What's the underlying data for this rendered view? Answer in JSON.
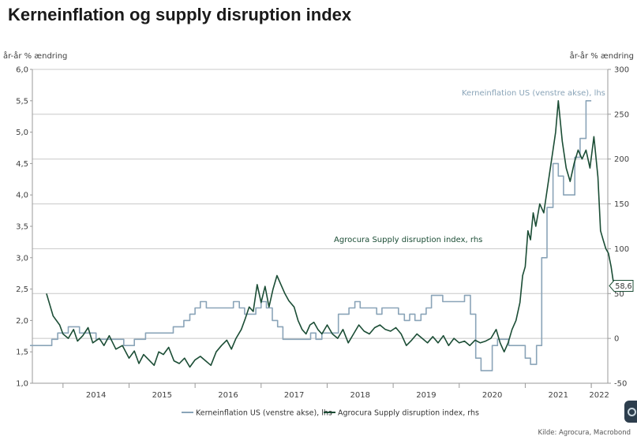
{
  "title": "Kerneinflation og supply disruption index",
  "left_unit": "år-år % ændring",
  "right_unit": "år-år % ændring",
  "source": "Kilde: Agrocura, Macrobond",
  "chart_data": {
    "type": "line",
    "title": "Kerneinflation og supply disruption index",
    "x_ticks": [
      "2014",
      "2015",
      "2016",
      "2017",
      "2018",
      "2019",
      "2020",
      "2021",
      "2022"
    ],
    "x_range": [
      2013.5,
      2022.25
    ],
    "left_axis": {
      "label": "år-år % ændring",
      "range": [
        1.0,
        6.0
      ],
      "ticks": [
        "1,0",
        "1,5",
        "2,0",
        "2,5",
        "3,0",
        "3,5",
        "4,0",
        "4,5",
        "5,0",
        "5,5",
        "6,0"
      ]
    },
    "right_axis": {
      "label": "år-år % ændring",
      "range": [
        -50,
        300
      ],
      "ticks": [
        "-50",
        "0",
        "50",
        "100",
        "150",
        "200",
        "250",
        "300"
      ]
    },
    "grid": true,
    "legend_position": "bottom",
    "series": [
      {
        "name": "Kerneinflation US (venstre akse), lhs",
        "axis": "left",
        "color": "#8aa4b8",
        "label": "Kerneinflation US (venstre akse), lhs",
        "points": [
          [
            2013.5,
            1.6
          ],
          [
            2013.75,
            1.6
          ],
          [
            2013.83,
            1.7
          ],
          [
            2013.92,
            1.8
          ],
          [
            2014.0,
            1.8
          ],
          [
            2014.08,
            1.9
          ],
          [
            2014.17,
            1.9
          ],
          [
            2014.25,
            1.8
          ],
          [
            2014.33,
            1.8
          ],
          [
            2014.42,
            1.8
          ],
          [
            2014.5,
            1.7
          ],
          [
            2014.58,
            1.7
          ],
          [
            2014.67,
            1.7
          ],
          [
            2014.75,
            1.7
          ],
          [
            2014.83,
            1.7
          ],
          [
            2014.92,
            1.6
          ],
          [
            2015.0,
            1.6
          ],
          [
            2015.08,
            1.7
          ],
          [
            2015.17,
            1.7
          ],
          [
            2015.25,
            1.8
          ],
          [
            2015.33,
            1.8
          ],
          [
            2015.42,
            1.8
          ],
          [
            2015.5,
            1.8
          ],
          [
            2015.58,
            1.8
          ],
          [
            2015.67,
            1.9
          ],
          [
            2015.75,
            1.9
          ],
          [
            2015.83,
            2.0
          ],
          [
            2015.92,
            2.1
          ],
          [
            2016.0,
            2.2
          ],
          [
            2016.08,
            2.3
          ],
          [
            2016.17,
            2.2
          ],
          [
            2016.25,
            2.2
          ],
          [
            2016.33,
            2.2
          ],
          [
            2016.42,
            2.2
          ],
          [
            2016.5,
            2.2
          ],
          [
            2016.58,
            2.3
          ],
          [
            2016.67,
            2.2
          ],
          [
            2016.75,
            2.1
          ],
          [
            2016.83,
            2.1
          ],
          [
            2016.92,
            2.2
          ],
          [
            2017.0,
            2.3
          ],
          [
            2017.08,
            2.2
          ],
          [
            2017.17,
            2.0
          ],
          [
            2017.25,
            1.9
          ],
          [
            2017.33,
            1.7
          ],
          [
            2017.42,
            1.7
          ],
          [
            2017.5,
            1.7
          ],
          [
            2017.58,
            1.7
          ],
          [
            2017.67,
            1.7
          ],
          [
            2017.75,
            1.8
          ],
          [
            2017.83,
            1.7
          ],
          [
            2017.92,
            1.8
          ],
          [
            2018.0,
            1.8
          ],
          [
            2018.08,
            1.8
          ],
          [
            2018.17,
            2.1
          ],
          [
            2018.25,
            2.1
          ],
          [
            2018.33,
            2.2
          ],
          [
            2018.42,
            2.3
          ],
          [
            2018.5,
            2.2
          ],
          [
            2018.58,
            2.2
          ],
          [
            2018.67,
            2.2
          ],
          [
            2018.75,
            2.1
          ],
          [
            2018.83,
            2.2
          ],
          [
            2018.92,
            2.2
          ],
          [
            2019.0,
            2.2
          ],
          [
            2019.08,
            2.1
          ],
          [
            2019.17,
            2.0
          ],
          [
            2019.25,
            2.1
          ],
          [
            2019.33,
            2.0
          ],
          [
            2019.42,
            2.1
          ],
          [
            2019.5,
            2.2
          ],
          [
            2019.58,
            2.4
          ],
          [
            2019.67,
            2.4
          ],
          [
            2019.75,
            2.3
          ],
          [
            2019.83,
            2.3
          ],
          [
            2019.92,
            2.3
          ],
          [
            2020.0,
            2.3
          ],
          [
            2020.08,
            2.4
          ],
          [
            2020.17,
            2.1
          ],
          [
            2020.25,
            1.4
          ],
          [
            2020.33,
            1.2
          ],
          [
            2020.42,
            1.2
          ],
          [
            2020.5,
            1.6
          ],
          [
            2020.58,
            1.7
          ],
          [
            2020.67,
            1.7
          ],
          [
            2020.75,
            1.6
          ],
          [
            2020.83,
            1.6
          ],
          [
            2020.92,
            1.6
          ],
          [
            2021.0,
            1.4
          ],
          [
            2021.08,
            1.3
          ],
          [
            2021.17,
            1.6
          ],
          [
            2021.25,
            3.0
          ],
          [
            2021.33,
            3.8
          ],
          [
            2021.42,
            4.5
          ],
          [
            2021.5,
            4.3
          ],
          [
            2021.58,
            4.0
          ],
          [
            2021.67,
            4.0
          ],
          [
            2021.75,
            4.6
          ],
          [
            2021.83,
            4.9
          ],
          [
            2021.92,
            5.5
          ],
          [
            2022.0,
            5.5
          ]
        ]
      },
      {
        "name": "Agrocura Supply disruption index, rhs",
        "axis": "right",
        "color": "#1b4d35",
        "label": "Agrocura Supply disruption index, rhs",
        "last_value_label": "58,6",
        "points": [
          [
            2013.75,
            50
          ],
          [
            2013.85,
            25
          ],
          [
            2013.95,
            15
          ],
          [
            2014.0,
            5
          ],
          [
            2014.08,
            0
          ],
          [
            2014.16,
            10
          ],
          [
            2014.22,
            -3
          ],
          [
            2014.3,
            3
          ],
          [
            2014.38,
            12
          ],
          [
            2014.45,
            -5
          ],
          [
            2014.55,
            0
          ],
          [
            2014.62,
            -8
          ],
          [
            2014.7,
            3
          ],
          [
            2014.8,
            -12
          ],
          [
            2014.9,
            -8
          ],
          [
            2015.0,
            -22
          ],
          [
            2015.08,
            -14
          ],
          [
            2015.15,
            -28
          ],
          [
            2015.22,
            -18
          ],
          [
            2015.3,
            -24
          ],
          [
            2015.38,
            -30
          ],
          [
            2015.45,
            -15
          ],
          [
            2015.52,
            -18
          ],
          [
            2015.6,
            -10
          ],
          [
            2015.68,
            -25
          ],
          [
            2015.76,
            -28
          ],
          [
            2015.84,
            -22
          ],
          [
            2015.92,
            -32
          ],
          [
            2016.0,
            -24
          ],
          [
            2016.08,
            -20
          ],
          [
            2016.16,
            -25
          ],
          [
            2016.24,
            -30
          ],
          [
            2016.32,
            -15
          ],
          [
            2016.4,
            -8
          ],
          [
            2016.48,
            -2
          ],
          [
            2016.55,
            -12
          ],
          [
            2016.62,
            0
          ],
          [
            2016.7,
            10
          ],
          [
            2016.76,
            22
          ],
          [
            2016.82,
            35
          ],
          [
            2016.88,
            30
          ],
          [
            2016.94,
            60
          ],
          [
            2017.0,
            40
          ],
          [
            2017.06,
            58
          ],
          [
            2017.12,
            35
          ],
          [
            2017.18,
            55
          ],
          [
            2017.24,
            70
          ],
          [
            2017.3,
            60
          ],
          [
            2017.36,
            50
          ],
          [
            2017.42,
            42
          ],
          [
            2017.5,
            35
          ],
          [
            2017.56,
            20
          ],
          [
            2017.62,
            10
          ],
          [
            2017.68,
            5
          ],
          [
            2017.74,
            15
          ],
          [
            2017.8,
            18
          ],
          [
            2017.86,
            10
          ],
          [
            2017.92,
            5
          ],
          [
            2018.0,
            15
          ],
          [
            2018.08,
            5
          ],
          [
            2018.16,
            0
          ],
          [
            2018.24,
            10
          ],
          [
            2018.32,
            -5
          ],
          [
            2018.4,
            5
          ],
          [
            2018.48,
            15
          ],
          [
            2018.56,
            8
          ],
          [
            2018.64,
            5
          ],
          [
            2018.72,
            12
          ],
          [
            2018.8,
            15
          ],
          [
            2018.88,
            10
          ],
          [
            2018.96,
            8
          ],
          [
            2019.04,
            12
          ],
          [
            2019.12,
            5
          ],
          [
            2019.2,
            -8
          ],
          [
            2019.28,
            -2
          ],
          [
            2019.36,
            5
          ],
          [
            2019.44,
            0
          ],
          [
            2019.52,
            -5
          ],
          [
            2019.6,
            2
          ],
          [
            2019.68,
            -5
          ],
          [
            2019.76,
            3
          ],
          [
            2019.84,
            -8
          ],
          [
            2019.92,
            0
          ],
          [
            2020.0,
            -5
          ],
          [
            2020.08,
            -3
          ],
          [
            2020.16,
            -8
          ],
          [
            2020.24,
            -2
          ],
          [
            2020.32,
            -5
          ],
          [
            2020.4,
            -3
          ],
          [
            2020.48,
            0
          ],
          [
            2020.56,
            10
          ],
          [
            2020.62,
            -5
          ],
          [
            2020.68,
            -15
          ],
          [
            2020.74,
            -5
          ],
          [
            2020.8,
            10
          ],
          [
            2020.86,
            20
          ],
          [
            2020.92,
            40
          ],
          [
            2020.96,
            70
          ],
          [
            2021.0,
            80
          ],
          [
            2021.04,
            120
          ],
          [
            2021.08,
            110
          ],
          [
            2021.12,
            140
          ],
          [
            2021.16,
            125
          ],
          [
            2021.22,
            150
          ],
          [
            2021.28,
            140
          ],
          [
            2021.34,
            170
          ],
          [
            2021.4,
            200
          ],
          [
            2021.46,
            230
          ],
          [
            2021.5,
            265
          ],
          [
            2021.56,
            220
          ],
          [
            2021.62,
            190
          ],
          [
            2021.68,
            175
          ],
          [
            2021.74,
            195
          ],
          [
            2021.8,
            210
          ],
          [
            2021.86,
            200
          ],
          [
            2021.92,
            210
          ],
          [
            2021.98,
            190
          ],
          [
            2022.04,
            225
          ],
          [
            2022.1,
            180
          ],
          [
            2022.14,
            120
          ],
          [
            2022.18,
            110
          ],
          [
            2022.22,
            100
          ],
          [
            2022.26,
            95
          ],
          [
            2022.3,
            80
          ],
          [
            2022.33,
            65
          ],
          [
            2022.36,
            58.6
          ]
        ]
      }
    ],
    "annotations": [
      {
        "text": "Kerneinflation US (venstre akse), lhs",
        "series": 0
      },
      {
        "text": "Agrocura Supply disruption index, rhs",
        "series": 1
      }
    ]
  }
}
